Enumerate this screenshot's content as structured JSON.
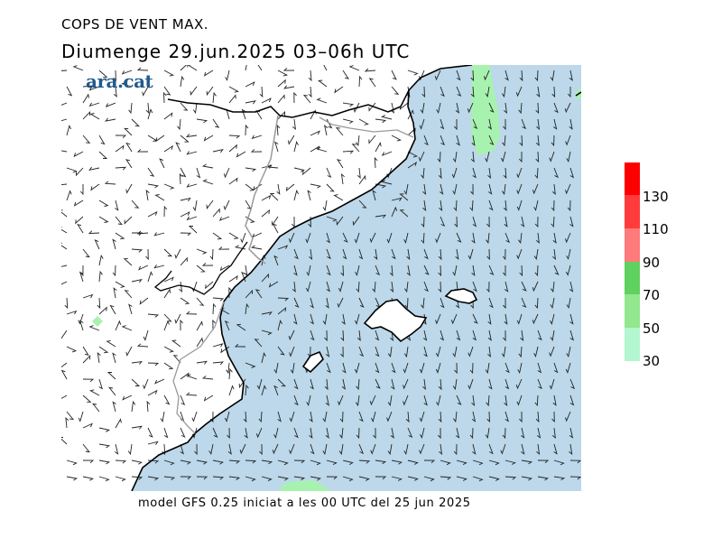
{
  "header": {
    "title": "COPS DE VENT MAX.",
    "subtitle": "Diumenge  29.jun.2025 03–06h UTC"
  },
  "brand": {
    "logo_text": "ara.cat"
  },
  "footer": {
    "text": "model GFS 0.25 iniciat a les 00 UTC del 25 jun 2025"
  },
  "legend": {
    "labels": [
      "130",
      "110",
      "90",
      "70",
      "50",
      "30"
    ],
    "colors": [
      "#ff0000",
      "#ff3b3b",
      "#ff7a7a",
      "#5fd15f",
      "#93e78e",
      "#b2f7cf"
    ]
  },
  "map": {
    "sea_color": "#bcd8ea",
    "gust_zone_color": "#a8f2b0",
    "coast_color": "#000000",
    "border_color": "#9a9a9a"
  }
}
